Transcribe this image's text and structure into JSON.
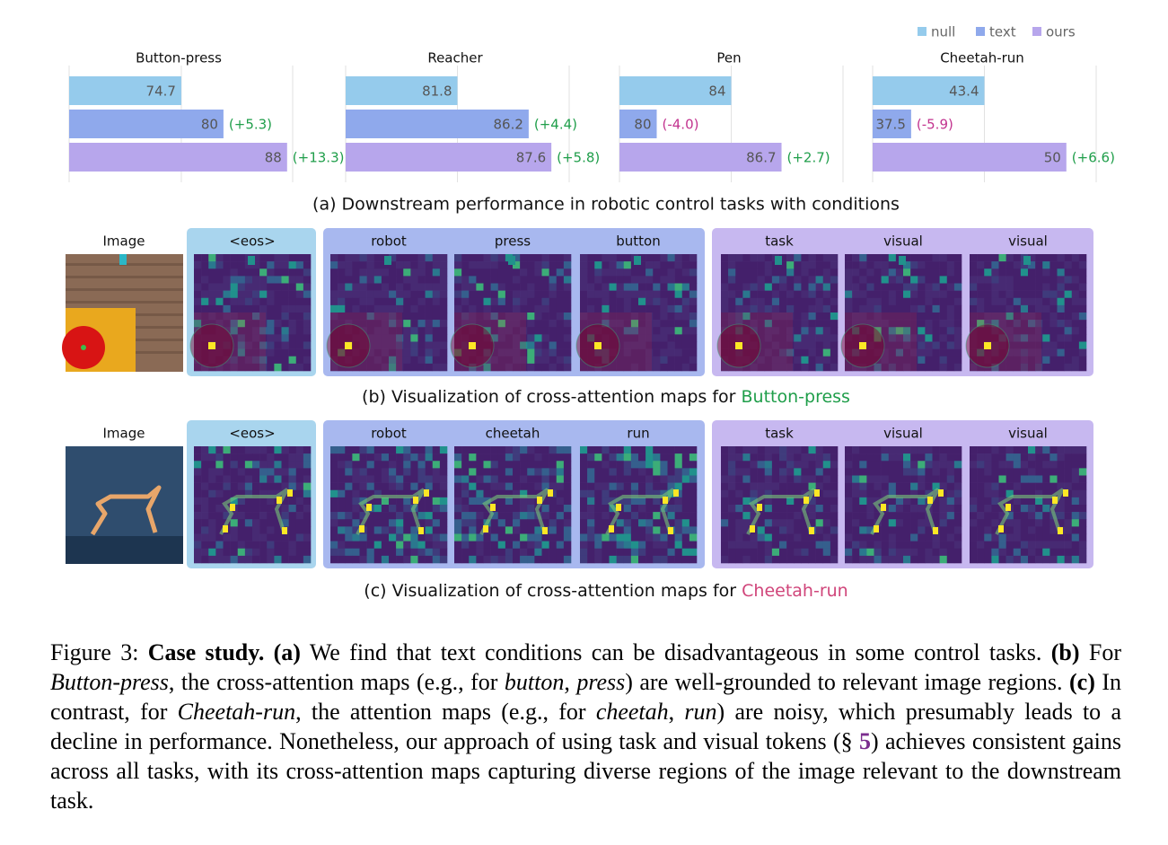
{
  "legend": [
    {
      "name": "null",
      "color": "#95cbec"
    },
    {
      "name": "text",
      "color": "#8fa9ec"
    },
    {
      "name": "ours",
      "color": "#b7a6ec"
    }
  ],
  "chart_data": [
    {
      "type": "bar",
      "title": "Button-press",
      "values": [
        74.7,
        80,
        88
      ],
      "annotations": [
        "(+5.3)",
        "(+13.3)"
      ],
      "annotation_colors": [
        "#1f9e4a",
        "#1f9e4a"
      ],
      "xlim": [
        60.6,
        88.7
      ],
      "xticks": [
        60.6,
        74.7,
        88.7
      ],
      "grid": true
    },
    {
      "type": "bar",
      "title": "Reacher",
      "values": [
        81.8,
        86.2,
        87.6
      ],
      "annotations": [
        "(+4.4)",
        "(+5.8)"
      ],
      "annotation_colors": [
        "#1f9e4a",
        "#1f9e4a"
      ],
      "xlim": [
        74.9,
        88.7
      ],
      "xticks": [
        74.9,
        81.8,
        88.7
      ],
      "grid": true
    },
    {
      "type": "bar",
      "title": "Pen",
      "values": [
        84,
        80,
        86.7
      ],
      "annotations": [
        "(-4.0)",
        "(+2.7)"
      ],
      "annotation_colors": [
        "#c2338f",
        "#1f9e4a"
      ],
      "xlim": [
        78,
        90
      ],
      "xticks": [
        78,
        84,
        90
      ],
      "grid": true
    },
    {
      "type": "bar",
      "title": "Cheetah-run",
      "values": [
        43.4,
        37.5,
        50
      ],
      "annotations": [
        "(-5.9)",
        "(+6.6)"
      ],
      "annotation_colors": [
        "#c2338f",
        "#1f9e4a"
      ],
      "xlim": [
        34.4,
        52.4
      ],
      "xticks": [
        34.4,
        43.4,
        52.4
      ],
      "grid": true
    }
  ],
  "chart_caption": "(a) Downstream performance in robotic control tasks with conditions",
  "panels": [
    {
      "image_label": "Image",
      "groups": [
        [
          "<eos>"
        ],
        [
          "robot",
          "press",
          "button"
        ],
        [
          "task",
          "visual",
          "visual"
        ]
      ],
      "caption_prefix": "(b) Visualization of cross-attention maps for ",
      "caption_task": "Button-press",
      "task_color": "#1f9e4a"
    },
    {
      "image_label": "Image",
      "groups": [
        [
          "<eos>"
        ],
        [
          "robot",
          "cheetah",
          "run"
        ],
        [
          "task",
          "visual",
          "visual"
        ]
      ],
      "caption_prefix": "(c) Visualization of cross-attention maps for ",
      "caption_task": "Cheetah-run",
      "task_color": "#d0457a"
    }
  ],
  "caption": {
    "segments": [
      {
        "text": "Figure 3: "
      },
      {
        "text": "Case study. (a)",
        "style": "bold"
      },
      {
        "text": " We find that text conditions can be disadvantageous in some control tasks. "
      },
      {
        "text": "(b)",
        "style": "bold"
      },
      {
        "text": " For "
      },
      {
        "text": "Button-press",
        "style": "italic"
      },
      {
        "text": ", the cross-attention maps (e.g., for "
      },
      {
        "text": "button",
        "style": "italic"
      },
      {
        "text": ", "
      },
      {
        "text": "press",
        "style": "italic"
      },
      {
        "text": ") are well-grounded to relevant image regions. "
      },
      {
        "text": "(c)",
        "style": "bold"
      },
      {
        "text": " In contrast, for "
      },
      {
        "text": "Cheetah-run",
        "style": "italic"
      },
      {
        "text": ", the attention maps (e.g., for "
      },
      {
        "text": "cheetah",
        "style": "italic"
      },
      {
        "text": ", "
      },
      {
        "text": "run",
        "style": "italic"
      },
      {
        "text": ") are noisy, which presumably leads to a decline in performance. Nonetheless, our approach of using task and visual tokens (§ "
      },
      {
        "text": "5",
        "style": "link"
      },
      {
        "text": ") achieves consistent gains across all tasks, with its cross-attention maps capturing diverse regions of the image relevant to the downstream task."
      }
    ]
  }
}
